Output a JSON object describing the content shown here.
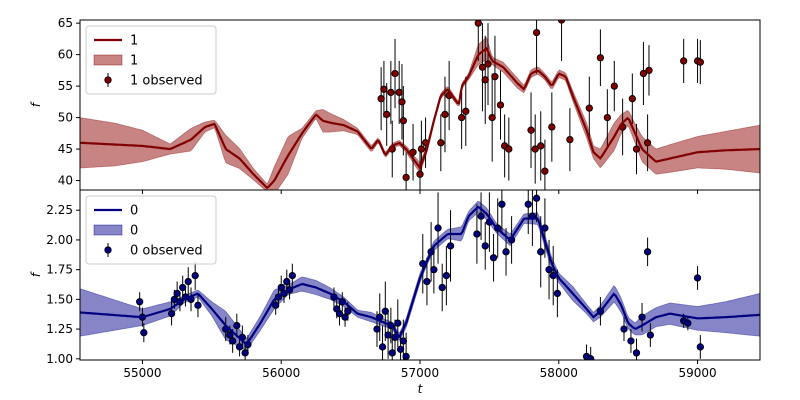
{
  "chart_data": [
    {
      "type": "line",
      "panel": "top",
      "xlabel": "",
      "ylabel": "f",
      "xlim": [
        54550,
        59450
      ],
      "ylim": [
        38.5,
        65.5
      ],
      "xticks": [
        55000,
        56000,
        57000,
        58000,
        59000
      ],
      "yticks": [
        40,
        45,
        50,
        55,
        60,
        65
      ],
      "xtick_labels_visible": false,
      "legend": {
        "placement": "top-left",
        "entries": [
          {
            "label": "1",
            "kind": "line"
          },
          {
            "label": "1",
            "kind": "band"
          },
          {
            "label": "1 observed",
            "kind": "errorbar"
          }
        ]
      },
      "colors": {
        "line": "#800000",
        "band": "#b55a5a",
        "points": "#800000"
      },
      "mean": {
        "x": [
          54550,
          55000,
          55200,
          55350,
          55450,
          55520,
          55600,
          55700,
          55800,
          55900,
          55950,
          56050,
          56150,
          56250,
          56300,
          56350,
          56450,
          56550,
          56650,
          56700,
          56750,
          56800,
          56850,
          56900,
          57000,
          57050,
          57100,
          57150,
          57200,
          57280,
          57300,
          57350,
          57420,
          57480,
          57520,
          57600,
          57700,
          57750,
          57800,
          57850,
          57900,
          57950,
          58000,
          58050,
          58100,
          58200,
          58250,
          58300,
          58400,
          58450,
          58500,
          58550,
          58600,
          58700,
          58800,
          59000,
          59200,
          59450
        ],
        "y": [
          46.0,
          45.5,
          45.0,
          46.5,
          48.5,
          49.0,
          45.0,
          43.5,
          41.0,
          38.8,
          40.0,
          44.0,
          47.5,
          50.5,
          49.5,
          49.2,
          48.8,
          47.8,
          45.0,
          46.5,
          44.0,
          45.5,
          46.0,
          45.0,
          42.0,
          45.0,
          49.5,
          53.5,
          54.5,
          52.0,
          55.0,
          56.5,
          60.0,
          61.0,
          59.0,
          58.0,
          55.5,
          54.5,
          57.0,
          57.5,
          56.5,
          55.0,
          57.0,
          56.5,
          53.5,
          48.0,
          44.5,
          43.5,
          47.0,
          49.0,
          50.0,
          47.5,
          45.0,
          43.0,
          43.5,
          44.5,
          44.8,
          45.0
        ]
      },
      "band": {
        "x": [
          54550,
          54800,
          55000,
          55200,
          55350,
          55450,
          55520,
          55600,
          55700,
          55800,
          55900,
          55950,
          56050,
          56150,
          56250,
          56300,
          56350,
          56450,
          56550,
          56650,
          56700,
          56750,
          56800,
          56850,
          56900,
          57000,
          57050,
          57100,
          57150,
          57200,
          57280,
          57300,
          57350,
          57420,
          57480,
          57520,
          57600,
          57700,
          57750,
          57800,
          57850,
          57900,
          57950,
          58000,
          58050,
          58100,
          58200,
          58250,
          58300,
          58400,
          58450,
          58500,
          58550,
          58600,
          58700,
          58800,
          59000,
          59200,
          59450
        ],
        "half_width": [
          4.0,
          3.4,
          2.5,
          0.8,
          1.8,
          0.8,
          0.6,
          2.2,
          1.6,
          0.9,
          0.6,
          2.2,
          3.0,
          0.8,
          0.6,
          1.8,
          1.5,
          0.9,
          0.5,
          0.5,
          0.4,
          0.4,
          0.4,
          0.4,
          0.5,
          0.8,
          0.6,
          0.4,
          0.4,
          0.5,
          0.4,
          0.4,
          0.5,
          1.6,
          1.8,
          0.6,
          0.8,
          0.8,
          0.6,
          0.6,
          0.6,
          0.5,
          0.6,
          0.6,
          0.6,
          0.8,
          1.2,
          1.0,
          1.5,
          2.2,
          1.5,
          1.2,
          1.5,
          2.0,
          2.0,
          2.2,
          2.5,
          3.0,
          3.8
        ]
      },
      "observations": {
        "x": [
          56720,
          56740,
          56760,
          56790,
          56800,
          56820,
          56850,
          56870,
          56880,
          56900,
          56950,
          57000,
          57010,
          57040,
          57150,
          57180,
          57210,
          57300,
          57330,
          57420,
          57450,
          57470,
          57490,
          57520,
          57540,
          57580,
          57610,
          57640,
          57800,
          57830,
          57840,
          57870,
          57900,
          57950,
          58020,
          58080,
          58220,
          58300,
          58350,
          58400,
          58460,
          58530,
          58560,
          58610,
          58640,
          58650,
          58900,
          59000,
          59020
        ],
        "y": [
          53.0,
          54.5,
          50.5,
          54.0,
          45.0,
          57.0,
          54.0,
          52.5,
          49.5,
          40.5,
          44.5,
          41.0,
          45.0,
          46.0,
          46.0,
          50.5,
          53.5,
          50.0,
          51.0,
          65.0,
          58.0,
          56.0,
          58.5,
          50.0,
          56.5,
          52.0,
          45.5,
          45.0,
          48.0,
          45.0,
          63.5,
          45.5,
          41.5,
          48.5,
          65.5,
          46.5,
          51.5,
          59.5,
          50.0,
          55.0,
          48.5,
          53.0,
          45.0,
          57.0,
          46.0,
          57.5,
          59.0,
          59.0,
          58.8
        ],
        "err": [
          5.0,
          4.5,
          5.0,
          5.0,
          4.5,
          5.5,
          5.0,
          6.0,
          5.5,
          4.0,
          4.5,
          4.5,
          4.5,
          4.0,
          4.5,
          6.0,
          5.5,
          5.0,
          5.5,
          6.0,
          7.0,
          7.0,
          6.5,
          7.0,
          6.5,
          5.5,
          5.0,
          5.0,
          6.0,
          5.5,
          6.5,
          5.5,
          5.0,
          5.5,
          6.5,
          5.0,
          5.0,
          4.5,
          4.5,
          4.0,
          4.5,
          4.0,
          4.0,
          5.0,
          4.5,
          4.0,
          3.5,
          3.5,
          3.5
        ]
      }
    },
    {
      "type": "line",
      "panel": "bottom",
      "xlabel": "t",
      "ylabel": "f",
      "xlim": [
        54550,
        59450
      ],
      "ylim": [
        0.99,
        2.42
      ],
      "xticks": [
        55000,
        56000,
        57000,
        58000,
        59000
      ],
      "yticks": [
        1.0,
        1.25,
        1.5,
        1.75,
        2.0,
        2.25
      ],
      "xtick_labels": [
        "55000",
        "56000",
        "57000",
        "58000",
        "59000"
      ],
      "ytick_labels": [
        "1.00",
        "1.25",
        "1.50",
        "1.75",
        "2.00",
        "2.25"
      ],
      "legend": {
        "placement": "top-left",
        "entries": [
          {
            "label": "0",
            "kind": "line"
          },
          {
            "label": "0",
            "kind": "band"
          },
          {
            "label": "0 observed",
            "kind": "errorbar"
          }
        ]
      },
      "colors": {
        "line": "#000080",
        "band": "#5c5cb4",
        "points": "#000080"
      },
      "mean": {
        "x": [
          54550,
          55000,
          55200,
          55300,
          55400,
          55500,
          55600,
          55750,
          55850,
          55950,
          56050,
          56150,
          56250,
          56350,
          56450,
          56550,
          56650,
          56750,
          56800,
          56850,
          56900,
          57000,
          57050,
          57100,
          57200,
          57300,
          57350,
          57420,
          57480,
          57550,
          57650,
          57750,
          57850,
          57950,
          58000,
          58100,
          58200,
          58250,
          58300,
          58400,
          58450,
          58500,
          58550,
          58600,
          58700,
          58800,
          59000,
          59200,
          59450
        ],
        "y": [
          1.39,
          1.35,
          1.42,
          1.5,
          1.55,
          1.42,
          1.28,
          1.12,
          1.3,
          1.5,
          1.58,
          1.63,
          1.6,
          1.55,
          1.48,
          1.38,
          1.35,
          1.3,
          1.28,
          1.18,
          1.3,
          1.68,
          1.82,
          1.95,
          2.05,
          2.05,
          2.2,
          2.28,
          2.22,
          2.1,
          2.0,
          2.18,
          2.18,
          1.8,
          1.68,
          1.55,
          1.42,
          1.35,
          1.4,
          1.55,
          1.45,
          1.3,
          1.25,
          1.28,
          1.35,
          1.38,
          1.34,
          1.35,
          1.37
        ]
      },
      "band": {
        "x": [
          54550,
          55000,
          55200,
          55300,
          55400,
          55500,
          55600,
          55750,
          55850,
          55950,
          56050,
          56150,
          56250,
          56350,
          56450,
          56550,
          56650,
          56750,
          56800,
          56850,
          56900,
          57000,
          57050,
          57100,
          57200,
          57300,
          57350,
          57420,
          57480,
          57550,
          57650,
          57750,
          57850,
          57950,
          58000,
          58100,
          58200,
          58250,
          58300,
          58400,
          58450,
          58500,
          58550,
          58600,
          58700,
          58800,
          59000,
          59200,
          59450
        ],
        "half_width": [
          0.2,
          0.07,
          0.06,
          0.03,
          0.03,
          0.06,
          0.12,
          0.05,
          0.06,
          0.08,
          0.04,
          0.06,
          0.06,
          0.05,
          0.04,
          0.03,
          0.04,
          0.03,
          0.03,
          0.03,
          0.04,
          0.04,
          0.03,
          0.04,
          0.04,
          0.06,
          0.04,
          0.05,
          0.05,
          0.04,
          0.05,
          0.04,
          0.05,
          0.05,
          0.04,
          0.06,
          0.04,
          0.04,
          0.05,
          0.07,
          0.06,
          0.05,
          0.05,
          0.08,
          0.08,
          0.09,
          0.1,
          0.13,
          0.18
        ]
      },
      "observations": {
        "x": [
          54980,
          55000,
          55010,
          55210,
          55230,
          55250,
          55270,
          55290,
          55310,
          55330,
          55350,
          55380,
          55400,
          55600,
          55630,
          55650,
          55680,
          55700,
          55720,
          55740,
          55760,
          55960,
          55980,
          56000,
          56020,
          56040,
          56060,
          56080,
          56380,
          56400,
          56420,
          56440,
          56460,
          56480,
          56690,
          56710,
          56730,
          56750,
          56770,
          56790,
          56800,
          56820,
          56840,
          56860,
          56880,
          56900,
          57020,
          57050,
          57080,
          57100,
          57130,
          57160,
          57190,
          57220,
          57410,
          57440,
          57470,
          57500,
          57530,
          57560,
          57590,
          57620,
          57660,
          57780,
          57810,
          57840,
          57870,
          57900,
          57930,
          57960,
          57990,
          58200,
          58230,
          58300,
          58470,
          58520,
          58560,
          58600,
          58640,
          58660,
          58900,
          58930,
          59000,
          59020
        ],
        "y": [
          1.48,
          1.35,
          1.22,
          1.38,
          1.5,
          1.55,
          1.48,
          1.6,
          1.52,
          1.65,
          1.5,
          1.7,
          1.45,
          1.25,
          1.2,
          1.15,
          1.28,
          1.1,
          1.18,
          1.05,
          1.12,
          1.45,
          1.52,
          1.6,
          1.55,
          1.65,
          1.58,
          1.7,
          1.52,
          1.42,
          1.38,
          1.48,
          1.35,
          1.4,
          1.25,
          1.35,
          1.1,
          1.4,
          1.2,
          1.28,
          1.05,
          1.18,
          1.3,
          1.08,
          1.15,
          1.02,
          1.8,
          1.65,
          1.9,
          1.75,
          2.1,
          1.6,
          1.7,
          1.95,
          2.05,
          2.2,
          1.95,
          2.15,
          1.85,
          2.1,
          2.3,
          1.9,
          2.0,
          2.3,
          2.2,
          2.35,
          1.9,
          2.1,
          1.75,
          1.7,
          1.55,
          1.02,
          1.0,
          1.4,
          1.25,
          1.15,
          1.05,
          1.35,
          1.9,
          1.2,
          1.32,
          1.3,
          1.68,
          1.1
        ],
        "err": [
          0.08,
          0.08,
          0.08,
          0.1,
          0.08,
          0.1,
          0.08,
          0.1,
          0.08,
          0.12,
          0.1,
          0.12,
          0.1,
          0.1,
          0.08,
          0.1,
          0.1,
          0.08,
          0.1,
          0.08,
          0.08,
          0.08,
          0.08,
          0.1,
          0.08,
          0.1,
          0.08,
          0.1,
          0.08,
          0.08,
          0.1,
          0.08,
          0.08,
          0.08,
          0.15,
          0.2,
          0.18,
          0.25,
          0.2,
          0.15,
          0.2,
          0.15,
          0.2,
          0.15,
          0.18,
          0.2,
          0.25,
          0.2,
          0.25,
          0.2,
          0.3,
          0.2,
          0.25,
          0.3,
          0.25,
          0.2,
          0.2,
          0.25,
          0.2,
          0.25,
          0.25,
          0.2,
          0.2,
          0.25,
          0.25,
          0.2,
          0.3,
          0.25,
          0.25,
          0.25,
          0.2,
          0.1,
          0.1,
          0.12,
          0.1,
          0.1,
          0.12,
          0.12,
          0.12,
          0.1,
          0.06,
          0.06,
          0.1,
          0.1
        ]
      }
    }
  ]
}
